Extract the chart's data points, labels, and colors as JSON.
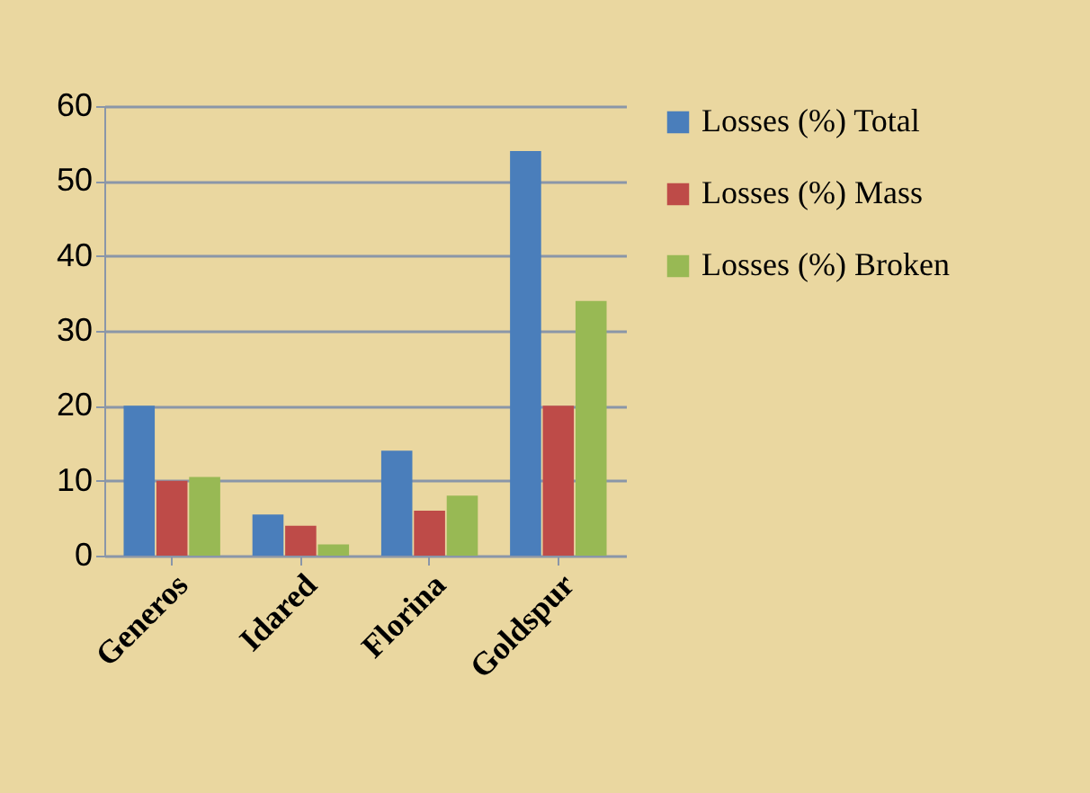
{
  "chart_data": {
    "type": "bar",
    "categories": [
      "Generos",
      "Idared",
      "Florina",
      "Goldspur"
    ],
    "series": [
      {
        "name": "Losses (%) Total",
        "color": "#4a7ebb",
        "values": [
          20,
          5.5,
          14,
          54
        ]
      },
      {
        "name": "Losses (%) Mass",
        "color": "#be4b48",
        "values": [
          10,
          4,
          6,
          20
        ]
      },
      {
        "name": "Losses (%) Broken",
        "color": "#98b954",
        "values": [
          10.5,
          1.5,
          8,
          34
        ]
      }
    ],
    "ylim": [
      0,
      60
    ],
    "yticks": [
      0,
      10,
      20,
      30,
      40,
      50,
      60
    ],
    "grid": "y",
    "legend": "right"
  }
}
